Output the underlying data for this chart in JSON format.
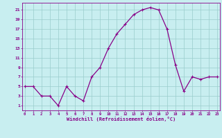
{
  "x": [
    0,
    1,
    2,
    3,
    4,
    5,
    6,
    7,
    8,
    9,
    10,
    11,
    12,
    13,
    14,
    15,
    16,
    17,
    18,
    19,
    20,
    21,
    22,
    23
  ],
  "y": [
    5,
    5,
    3,
    3,
    1,
    5,
    3,
    2,
    7,
    9,
    13,
    16,
    18,
    20,
    21,
    21.5,
    21,
    17,
    9.5,
    4,
    7,
    6.5,
    7,
    7
  ],
  "line_color": "#880088",
  "bg_color": "#c8eef0",
  "grid_color": "#99cccc",
  "xlabel": "Windchill (Refroidissement éolien,°C)",
  "xlabel_color": "#880088",
  "yticks": [
    1,
    3,
    5,
    7,
    9,
    11,
    13,
    15,
    17,
    19,
    21
  ],
  "xtick_labels": [
    "0",
    "1",
    "2",
    "3",
    "4",
    "5",
    "6",
    "7",
    "8",
    "9",
    "10",
    "11",
    "12",
    "13",
    "14",
    "15",
    "16",
    "17",
    "18",
    "19",
    "20",
    "21",
    "22",
    "23"
  ],
  "ylim": [
    0,
    22.5
  ],
  "xlim": [
    -0.3,
    23.3
  ]
}
